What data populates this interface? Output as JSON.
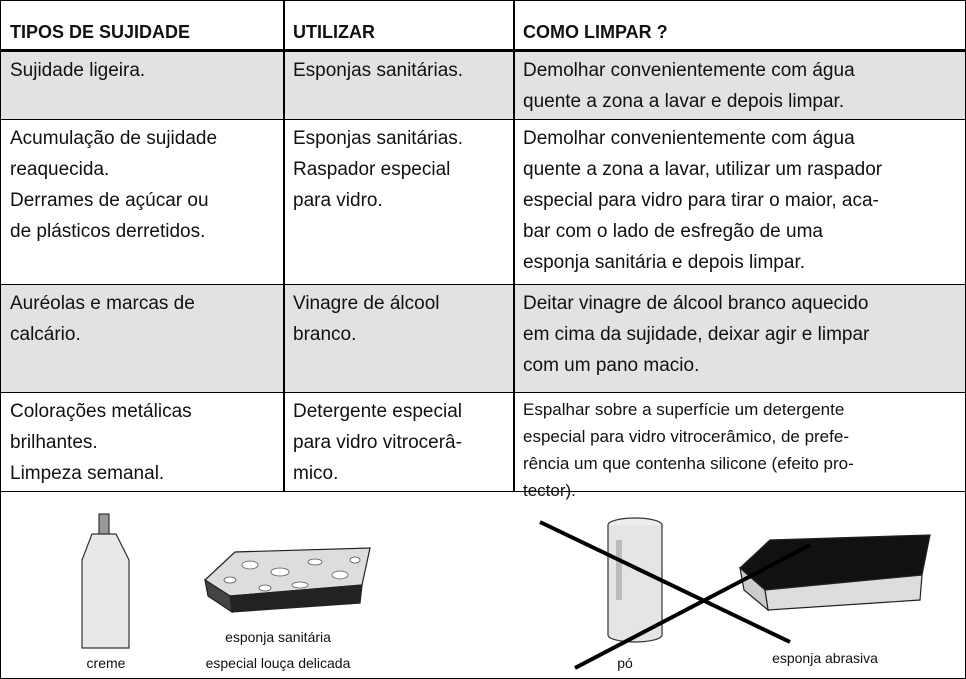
{
  "table": {
    "header": [
      "TIPOS DE SUJIDADE",
      "UTILIZAR",
      "COMO LIMPAR ?"
    ],
    "rows": [
      [
        [
          "Sujidade ligeira."
        ],
        [
          "Esponjas sanitárias."
        ],
        [
          "Demolhar convenientemente com água",
          "quente a zona a lavar e depois limpar."
        ]
      ],
      [
        [
          "Acumulação de sujidade",
          "reaquecida.",
          "Derrames de açúcar ou",
          "de plásticos derretidos."
        ],
        [
          "Esponjas sanitárias.",
          "Raspador especial",
          "para vidro."
        ],
        [
          "Demolhar convenientemente com água",
          "quente a zona a lavar, utilizar um raspador",
          "especial para vidro para tirar o maior, aca-",
          "bar com o lado de esfregão de uma",
          "esponja sanitária e depois limpar."
        ]
      ],
      [
        [
          "Auréolas e marcas de",
          "calcário."
        ],
        [
          "Vinagre de álcool",
          "branco."
        ],
        [
          "Deitar vinagre de álcool branco aquecido",
          "em cima da sujidade, deixar agir e limpar",
          "com um pano macio."
        ]
      ],
      [
        [
          "Colorações metálicas",
          "brilhantes.",
          "Limpeza semanal."
        ],
        [
          "Detergente especial",
          "para vidro vitrocerâ-",
          "mico."
        ],
        [
          "Espalhar sobre a superfície um detergente",
          "especial para vidro vitrocerâmico, de prefe-",
          "rência um que contenha silicone (efeito pro-",
          "tector)."
        ]
      ]
    ]
  },
  "illustrations": {
    "captions": [
      [
        "creme"
      ],
      [
        "esponja sanitária",
        "especial louça delicada"
      ],
      [
        "pó"
      ],
      [
        "esponja abrasiva"
      ]
    ]
  }
}
